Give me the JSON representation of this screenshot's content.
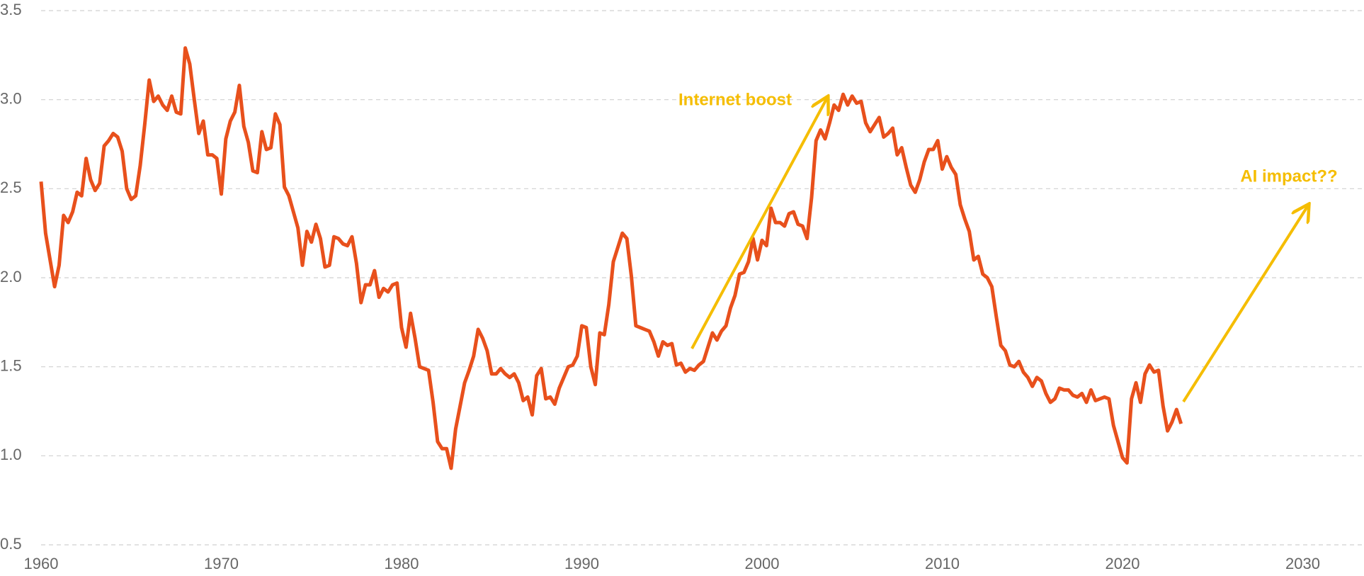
{
  "chart_data": {
    "type": "line",
    "xlim": [
      1960,
      2033.4
    ],
    "ylim": [
      0.5,
      3.5
    ],
    "xticks": [
      1960,
      1970,
      1980,
      1990,
      2000,
      2010,
      2020,
      2030
    ],
    "yticks": [
      {
        "value": 0.5,
        "label": "0.5"
      },
      {
        "value": 1,
        "label": "1.0"
      },
      1.5,
      {
        "value": 2,
        "label": "2.0"
      },
      2.5,
      {
        "value": 3,
        "label": "3.0"
      },
      3.5
    ],
    "grid": true,
    "annotations": [
      "Internet boost",
      "AI impact??"
    ],
    "annotation_color": "#f5bd00",
    "series": [
      {
        "color": "#e8501c",
        "x": [
          1960,
          1960.25,
          1960.5,
          1960.75,
          1961,
          1961.25,
          1961.5,
          1961.75,
          1962,
          1962.25,
          1962.5,
          1962.75,
          1963,
          1963.25,
          1963.5,
          1963.75,
          1964,
          1964.25,
          1964.5,
          1964.75,
          1965,
          1965.25,
          1965.5,
          1965.75,
          1966,
          1966.25,
          1966.5,
          1966.75,
          1967,
          1967.25,
          1967.5,
          1967.75,
          1968,
          1968.25,
          1968.5,
          1968.75,
          1969,
          1969.25,
          1969.5,
          1969.75,
          1970,
          1970.25,
          1970.5,
          1970.75,
          1971,
          1971.25,
          1971.5,
          1971.75,
          1972,
          1972.25,
          1972.5,
          1972.75,
          1973,
          1973.25,
          1973.5,
          1973.75,
          1974,
          1974.25,
          1974.5,
          1974.75,
          1975,
          1975.25,
          1975.5,
          1975.75,
          1976,
          1976.25,
          1976.5,
          1976.75,
          1977,
          1977.25,
          1977.5,
          1977.75,
          1978,
          1978.25,
          1978.5,
          1978.75,
          1979,
          1979.25,
          1979.5,
          1979.75,
          1980,
          1980.25,
          1980.5,
          1980.75,
          1981,
          1981.25,
          1981.5,
          1981.75,
          1982,
          1982.25,
          1982.5,
          1982.75,
          1983,
          1983.25,
          1983.5,
          1983.75,
          1984,
          1984.25,
          1984.5,
          1984.75,
          1985,
          1985.25,
          1985.5,
          1985.75,
          1986,
          1986.25,
          1986.5,
          1986.75,
          1987,
          1987.25,
          1987.5,
          1987.75,
          1988,
          1988.25,
          1988.5,
          1988.75,
          1989,
          1989.25,
          1989.5,
          1989.75,
          1990,
          1990.25,
          1990.5,
          1990.75,
          1991,
          1991.25,
          1991.5,
          1991.75,
          1992,
          1992.25,
          1992.5,
          1992.75,
          1993,
          1993.25,
          1993.5,
          1993.75,
          1994,
          1994.25,
          1994.5,
          1994.75,
          1995,
          1995.25,
          1995.5,
          1995.75,
          1996,
          1996.25,
          1996.5,
          1996.75,
          1997,
          1997.25,
          1997.5,
          1997.75,
          1998,
          1998.25,
          1998.5,
          1998.75,
          1999,
          1999.25,
          1999.5,
          1999.75,
          2000,
          2000.25,
          2000.5,
          2000.75,
          2001,
          2001.25,
          2001.5,
          2001.75,
          2002,
          2002.25,
          2002.5,
          2002.75,
          2003,
          2003.25,
          2003.5,
          2003.75,
          2004,
          2004.25,
          2004.5,
          2004.75,
          2005,
          2005.25,
          2005.5,
          2005.75,
          2006,
          2006.25,
          2006.5,
          2006.75,
          2007,
          2007.25,
          2007.5,
          2007.75,
          2008,
          2008.25,
          2008.5,
          2008.75,
          2009,
          2009.25,
          2009.5,
          2009.75,
          2010,
          2010.25,
          2010.5,
          2010.75,
          2011,
          2011.25,
          2011.5,
          2011.75,
          2012,
          2012.25,
          2012.5,
          2012.75,
          2013,
          2013.25,
          2013.5,
          2013.75,
          2014,
          2014.25,
          2014.5,
          2014.75,
          2015,
          2015.25,
          2015.5,
          2015.75,
          2016,
          2016.25,
          2016.5,
          2016.75,
          2017,
          2017.25,
          2017.5,
          2017.75,
          2018,
          2018.25,
          2018.5,
          2018.75,
          2019,
          2019.25,
          2019.5,
          2019.75,
          2020,
          2020.25,
          2020.5,
          2020.75,
          2021,
          2021.25,
          2021.5,
          2021.75,
          2022,
          2022.25,
          2022.5,
          2022.75,
          2023,
          2023.25
        ],
        "values": [
          2.54,
          2.25,
          2.1,
          1.95,
          2.07,
          2.35,
          2.31,
          2.37,
          2.48,
          2.46,
          2.67,
          2.55,
          2.49,
          2.53,
          2.74,
          2.77,
          2.81,
          2.79,
          2.71,
          2.5,
          2.44,
          2.46,
          2.63,
          2.86,
          3.11,
          2.99,
          3.02,
          2.97,
          2.94,
          3.02,
          2.93,
          2.92,
          3.29,
          3.2,
          3.0,
          2.81,
          2.88,
          2.69,
          2.69,
          2.67,
          2.47,
          2.78,
          2.88,
          2.93,
          3.08,
          2.85,
          2.76,
          2.6,
          2.59,
          2.82,
          2.72,
          2.73,
          2.92,
          2.86,
          2.51,
          2.46,
          2.37,
          2.28,
          2.07,
          2.26,
          2.2,
          2.3,
          2.22,
          2.06,
          2.07,
          2.23,
          2.22,
          2.19,
          2.18,
          2.23,
          2.08,
          1.86,
          1.96,
          1.96,
          2.04,
          1.89,
          1.94,
          1.92,
          1.96,
          1.97,
          1.72,
          1.61,
          1.8,
          1.66,
          1.5,
          1.49,
          1.48,
          1.3,
          1.08,
          1.04,
          1.04,
          0.93,
          1.15,
          1.28,
          1.41,
          1.48,
          1.56,
          1.71,
          1.66,
          1.59,
          1.46,
          1.46,
          1.49,
          1.46,
          1.44,
          1.46,
          1.41,
          1.31,
          1.33,
          1.23,
          1.45,
          1.49,
          1.32,
          1.33,
          1.29,
          1.38,
          1.44,
          1.5,
          1.51,
          1.56,
          1.73,
          1.72,
          1.5,
          1.4,
          1.69,
          1.68,
          1.85,
          2.09,
          2.17,
          2.25,
          2.22,
          2.01,
          1.73,
          1.72,
          1.71,
          1.7,
          1.64,
          1.56,
          1.64,
          1.62,
          1.63,
          1.51,
          1.52,
          1.47,
          1.49,
          1.48,
          1.51,
          1.53,
          1.61,
          1.69,
          1.65,
          1.7,
          1.73,
          1.83,
          1.9,
          2.02,
          2.03,
          2.09,
          2.22,
          2.1,
          2.21,
          2.18,
          2.39,
          2.31,
          2.31,
          2.29,
          2.36,
          2.37,
          2.3,
          2.29,
          2.22,
          2.45,
          2.77,
          2.83,
          2.78,
          2.87,
          2.97,
          2.94,
          3.03,
          2.97,
          3.02,
          2.98,
          2.99,
          2.87,
          2.82,
          2.86,
          2.9,
          2.79,
          2.81,
          2.84,
          2.69,
          2.73,
          2.62,
          2.52,
          2.48,
          2.55,
          2.65,
          2.72,
          2.72,
          2.77,
          2.61,
          2.68,
          2.62,
          2.58,
          2.41,
          2.33,
          2.26,
          2.1,
          2.12,
          2.02,
          2.0,
          1.95,
          1.78,
          1.62,
          1.59,
          1.51,
          1.5,
          1.53,
          1.47,
          1.44,
          1.39,
          1.44,
          1.42,
          1.35,
          1.3,
          1.32,
          1.38,
          1.37,
          1.37,
          1.34,
          1.33,
          1.35,
          1.3,
          1.37,
          1.31,
          1.32,
          1.33,
          1.32,
          1.17,
          1.08,
          0.99,
          0.96,
          1.32,
          1.41,
          1.3,
          1.46,
          1.51,
          1.47,
          1.48,
          1.28,
          1.14,
          1.19,
          1.26,
          1.18
        ]
      }
    ]
  }
}
